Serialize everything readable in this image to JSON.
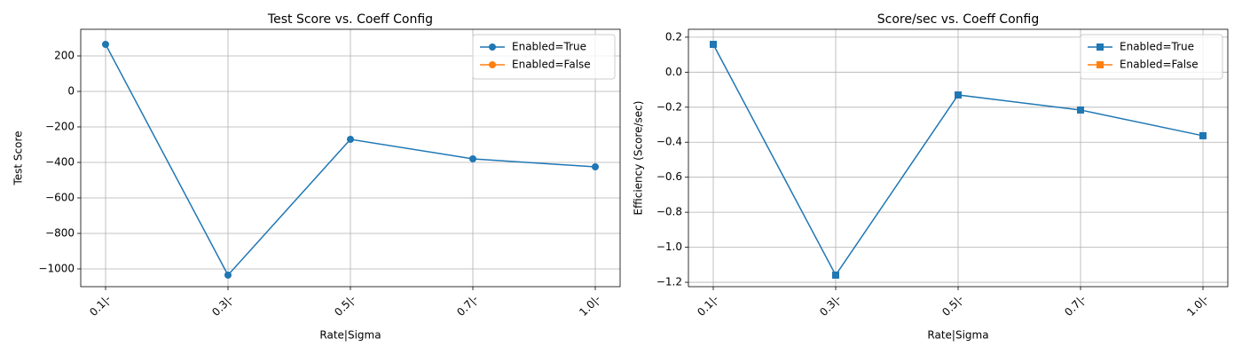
{
  "chart_data": [
    {
      "type": "line",
      "title": "Test Score vs. Coeff Config",
      "xlabel": "Rate|Sigma",
      "ylabel": "Test Score",
      "categories": [
        "0.1|-",
        "0.3|-",
        "0.5|-",
        "0.7|-",
        "1.0|-"
      ],
      "marker": "circle",
      "series": [
        {
          "name": "Enabled=True",
          "color": "#1f77b4",
          "values": [
            265,
            -1035,
            -270,
            -380,
            -425
          ]
        },
        {
          "name": "Enabled=False",
          "color": "#ff7f0e",
          "values": [
            null,
            null,
            null,
            null,
            null
          ]
        }
      ],
      "ylim": [
        -1100,
        350
      ],
      "yticks": [
        {
          "value": -1000,
          "label": "−1000"
        },
        {
          "value": -800,
          "label": "−800"
        },
        {
          "value": -600,
          "label": "−600"
        },
        {
          "value": -400,
          "label": "−400"
        },
        {
          "value": -200,
          "label": "−200"
        },
        0,
        200
      ],
      "grid": true,
      "legend": "upper right"
    },
    {
      "type": "line",
      "title": "Score/sec vs. Coeff Config",
      "xlabel": "Rate|Sigma",
      "ylabel": "Efficiency (Score/sec)",
      "categories": [
        "0.1|-",
        "0.3|-",
        "0.5|-",
        "0.7|-",
        "1.0|-"
      ],
      "marker": "square",
      "series": [
        {
          "name": "Enabled=True",
          "color": "#1f77b4",
          "values": [
            0.159,
            -1.159,
            -0.13,
            -0.216,
            -0.363
          ]
        },
        {
          "name": "Enabled=False",
          "color": "#ff7f0e",
          "values": [
            null,
            null,
            null,
            null,
            null
          ]
        }
      ],
      "ylim": [
        -1.225,
        0.245
      ],
      "yticks": [
        {
          "value": -1.2,
          "label": "−1.2"
        },
        {
          "value": -1.0,
          "label": "−1.0"
        },
        {
          "value": -0.8,
          "label": "−0.8"
        },
        {
          "value": -0.6,
          "label": "−0.6"
        },
        {
          "value": -0.4,
          "label": "−0.4"
        },
        {
          "value": -0.2,
          "label": "−0.2"
        },
        {
          "value": 0,
          "label": "0.0"
        },
        0.2
      ],
      "grid": true,
      "legend": "upper right"
    }
  ]
}
